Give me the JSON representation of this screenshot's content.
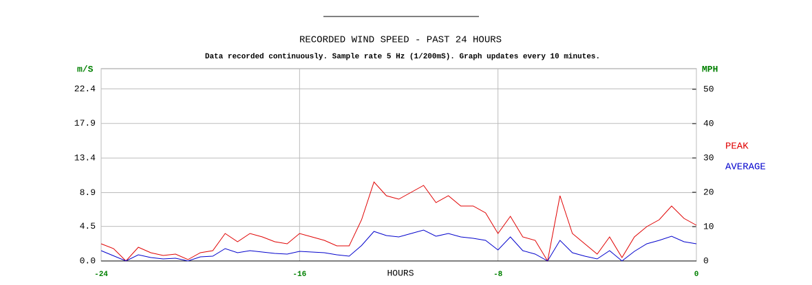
{
  "chart_data": {
    "type": "line",
    "title": "RECORDED WIND SPEED - PAST 24 HOURS",
    "subtitle": "Data recorded continuously. Sample rate 5 Hz (1/200mS). Graph updates every 10 minutes.",
    "y_label": "m/S",
    "y2_label": "MPH",
    "x_label": "HOURS",
    "x": [
      -24,
      -23.5,
      -23,
      -22.5,
      -22,
      -21.5,
      -21,
      -20.5,
      -20,
      -19.5,
      -19,
      -18.5,
      -18,
      -17.5,
      -17,
      -16.5,
      -16,
      -15.5,
      -15,
      -14.5,
      -14,
      -13.5,
      -13,
      -12.5,
      -12,
      -11.5,
      -11,
      -10.5,
      -10,
      -9.5,
      -9,
      -8.5,
      -8,
      -7.5,
      -7,
      -6.5,
      -6,
      -5.5,
      -5,
      -4.5,
      -4,
      -3.5,
      -3,
      -2.5,
      -2,
      -1.5,
      -1,
      -0.5,
      0
    ],
    "series": [
      {
        "name": "PEAK",
        "color": "#e00000",
        "axis": "y2",
        "values": [
          5,
          3.6,
          0,
          4,
          2.4,
          1.6,
          2,
          0.4,
          2.4,
          3,
          8,
          5.6,
          8,
          7,
          5.6,
          5,
          8,
          7,
          6,
          4.4,
          4.4,
          12,
          23,
          19,
          18,
          20,
          22,
          17,
          19,
          16,
          16,
          14,
          8,
          13,
          7,
          6,
          0,
          19,
          8,
          5,
          2,
          7,
          1,
          7,
          10,
          12,
          16,
          12.4,
          10.4
        ]
      },
      {
        "name": "AVERAGE",
        "color": "#0000cc",
        "axis": "y2",
        "values": [
          3,
          1.5,
          0,
          1.8,
          1,
          0.6,
          0.8,
          0,
          1.2,
          1.4,
          3.6,
          2.4,
          3,
          2.6,
          2.2,
          2,
          2.8,
          2.6,
          2.4,
          1.8,
          1.4,
          4.5,
          8.6,
          7.4,
          7,
          8,
          9,
          7.2,
          8,
          7,
          6.6,
          6,
          3.2,
          7,
          3,
          2,
          0,
          6,
          2.4,
          1.4,
          0.6,
          3,
          0,
          2.8,
          5,
          6,
          7.2,
          5.6,
          5
        ]
      }
    ],
    "xlim": [
      -24,
      0
    ],
    "xticks": [
      -24,
      -16,
      -8,
      0
    ],
    "ylim": [
      0,
      25.03
    ],
    "yticks": [
      {
        "value": 0,
        "label": "0.0"
      },
      4.5,
      8.9,
      13.4,
      17.9,
      22.4
    ],
    "y2lim": [
      0,
      56
    ],
    "y2ticks": [
      0,
      10,
      20,
      30,
      40,
      50
    ],
    "grid": true,
    "legend": "right"
  }
}
